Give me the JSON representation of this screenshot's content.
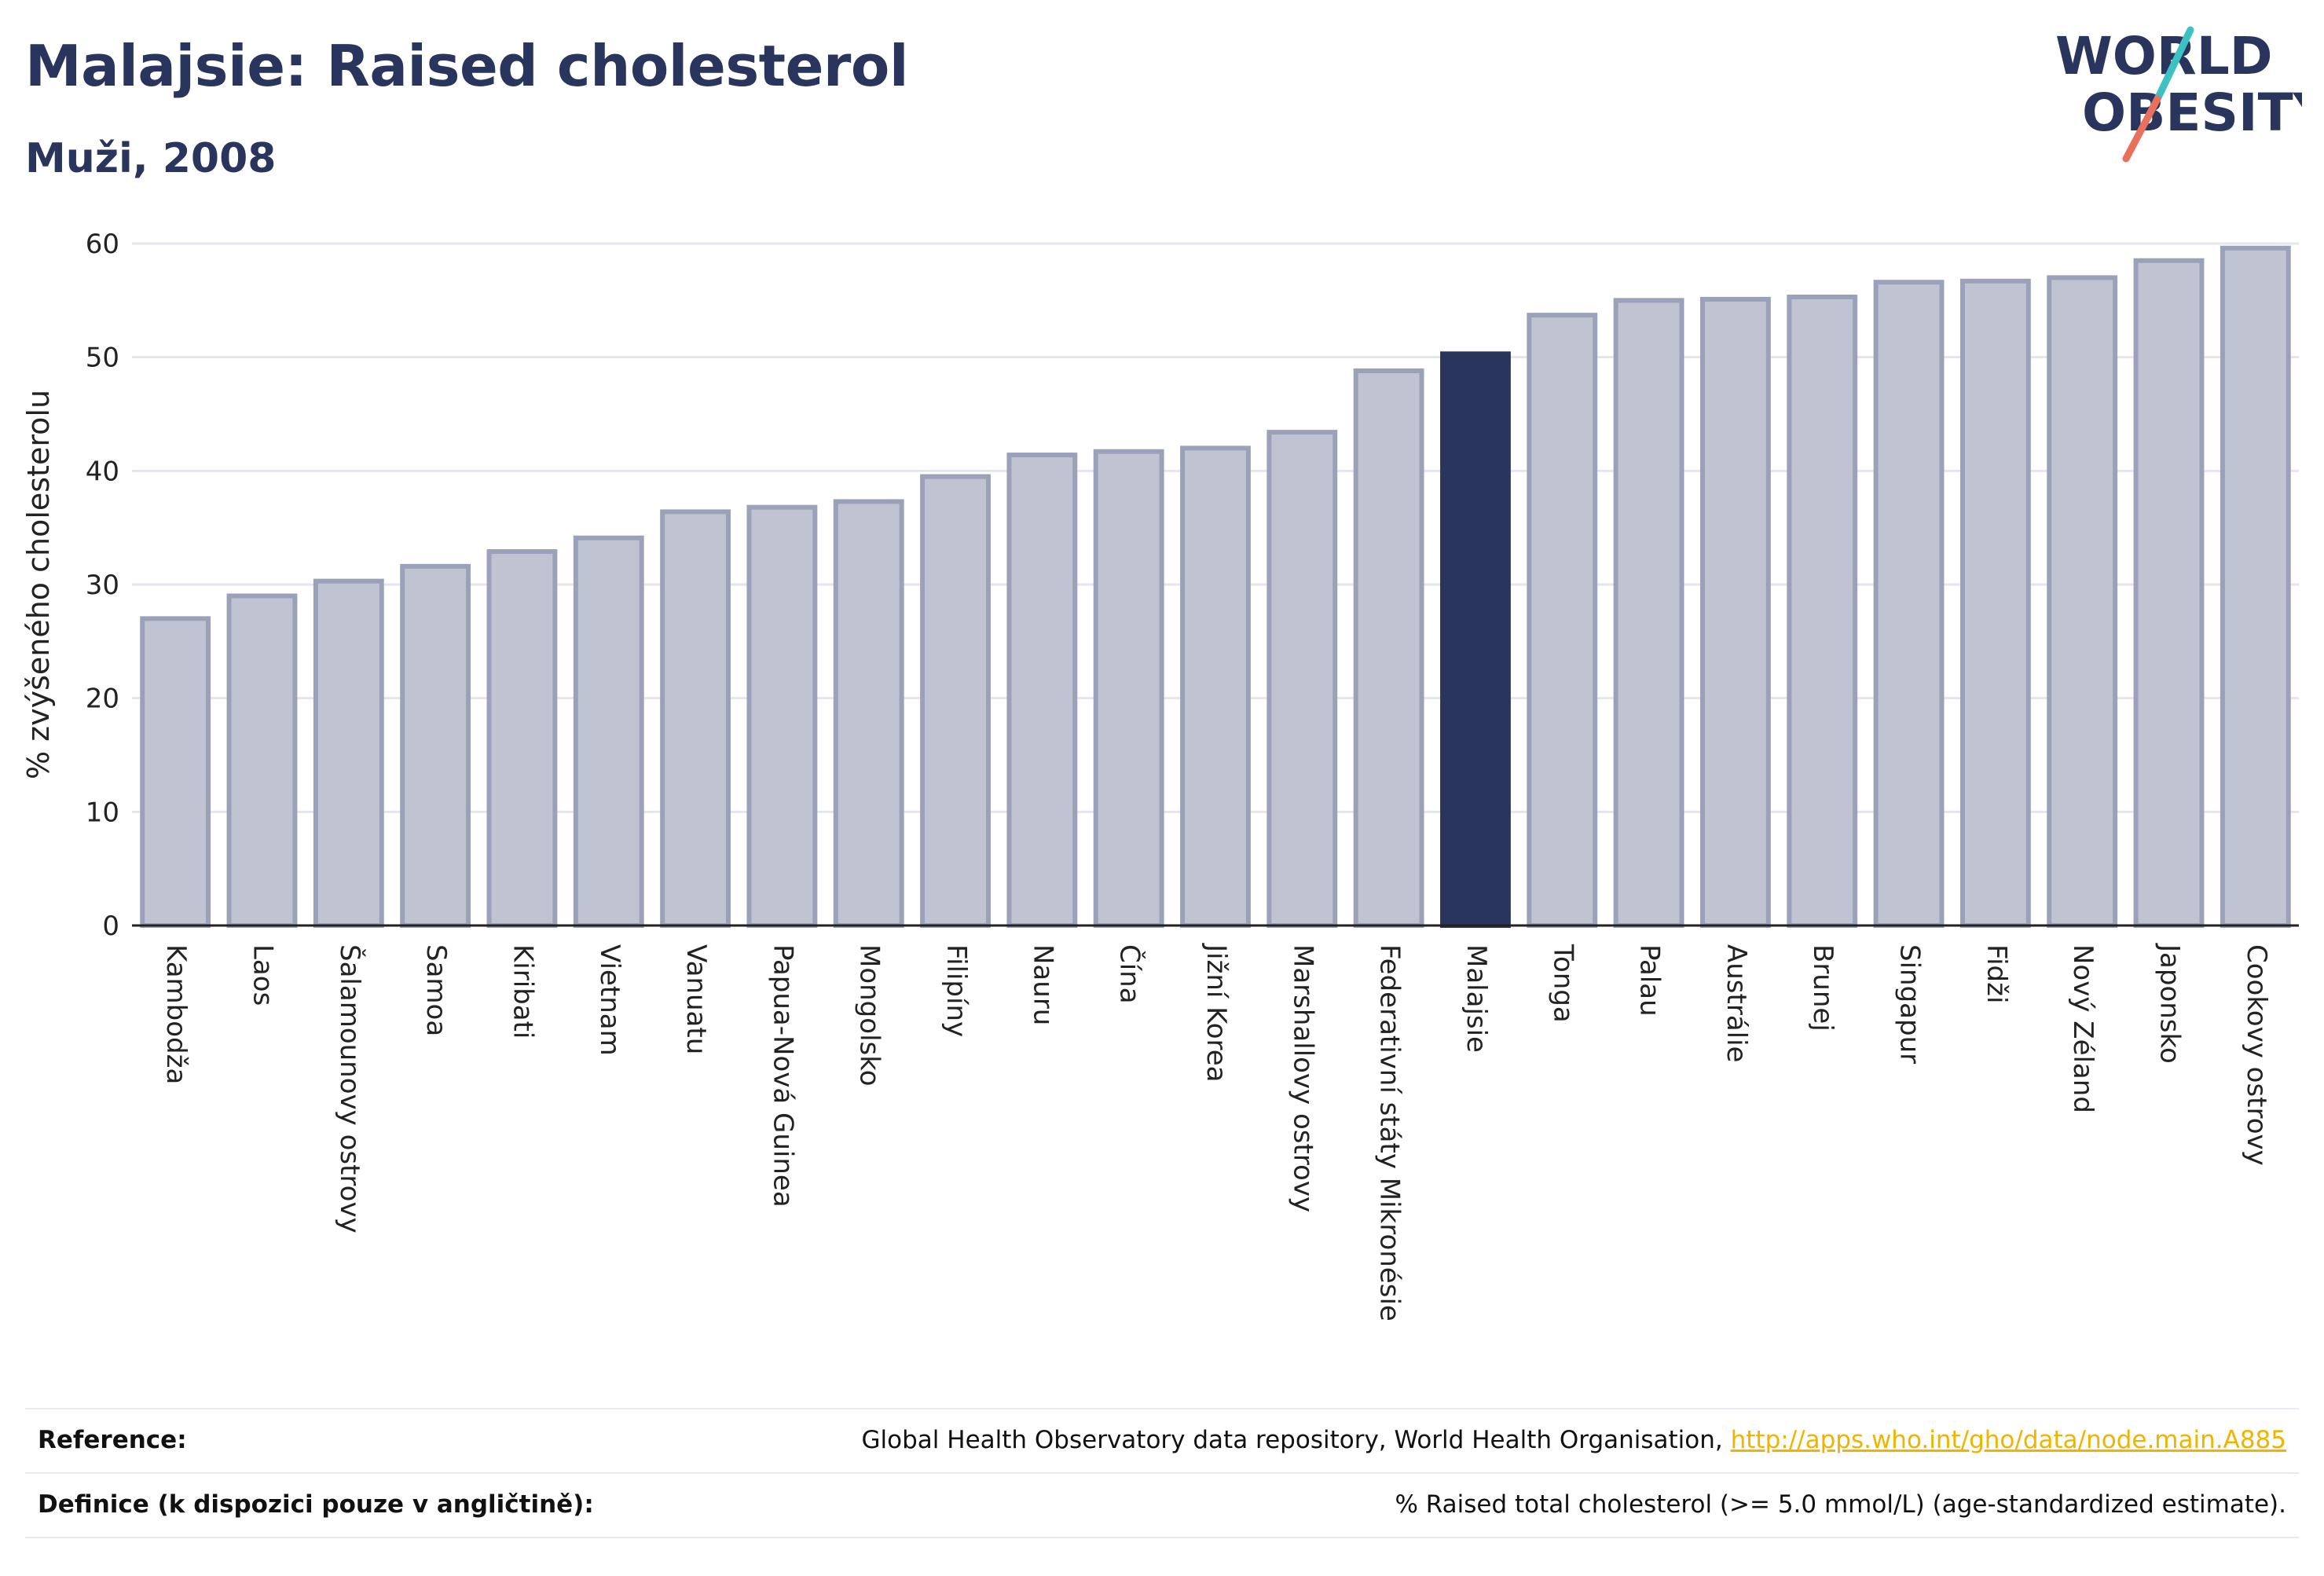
{
  "header": {
    "title": "Malajsie: Raised cholesterol",
    "subtitle": "Muži, 2008"
  },
  "logo": {
    "line1": "WORLD",
    "line2": "OBESITY",
    "slash_colors": [
      "#3ec1c1",
      "#e8705c"
    ]
  },
  "chart_data": {
    "type": "bar",
    "ylabel": "% zvýšeného cholesterolu",
    "xlabel": "",
    "ylim": [
      0,
      60
    ],
    "yticks": [
      0,
      10,
      20,
      30,
      40,
      50,
      60
    ],
    "grid": true,
    "highlight_category": "Malajsie",
    "colors": {
      "bar": "#c0c4d2",
      "bar_border": "#9aa1b8",
      "highlight": "#2a355e",
      "grid": "#e4e6ee",
      "axis": "#222222"
    },
    "categories": [
      "Kambodža",
      "Laos",
      "Šalamounovy ostrovy",
      "Samoa",
      "Kiribati",
      "Vietnam",
      "Vanuatu",
      "Papua-Nová Guinea",
      "Mongolsko",
      "Filipíny",
      "Nauru",
      "Čína",
      "Jižní Korea",
      "Marshallovy ostrovy",
      "Federativní státy Mikronésie",
      "Malajsie",
      "Tonga",
      "Palau",
      "Austrálie",
      "Brunej",
      "Singapur",
      "Fidži",
      "Nový Zéland",
      "Japonsko",
      "Cookovy ostrovy"
    ],
    "values": [
      27.0,
      29.0,
      30.3,
      31.6,
      32.9,
      34.1,
      36.4,
      36.8,
      37.3,
      39.5,
      41.4,
      41.7,
      42.0,
      43.4,
      48.8,
      50.3,
      53.7,
      55.0,
      55.1,
      55.3,
      56.6,
      56.7,
      57.0,
      58.5,
      59.6
    ]
  },
  "footer": {
    "reference_label": "Reference:",
    "reference_text": "Global Health Observatory data repository, World Health Organisation, ",
    "reference_link": "http://apps.who.int/gho/data/node.main.A885",
    "definition_label": "Definice (k dispozici pouze v angličtině):",
    "definition_text": "% Raised total cholesterol (>= 5.0 mmol/L) (age-standardized estimate)."
  }
}
